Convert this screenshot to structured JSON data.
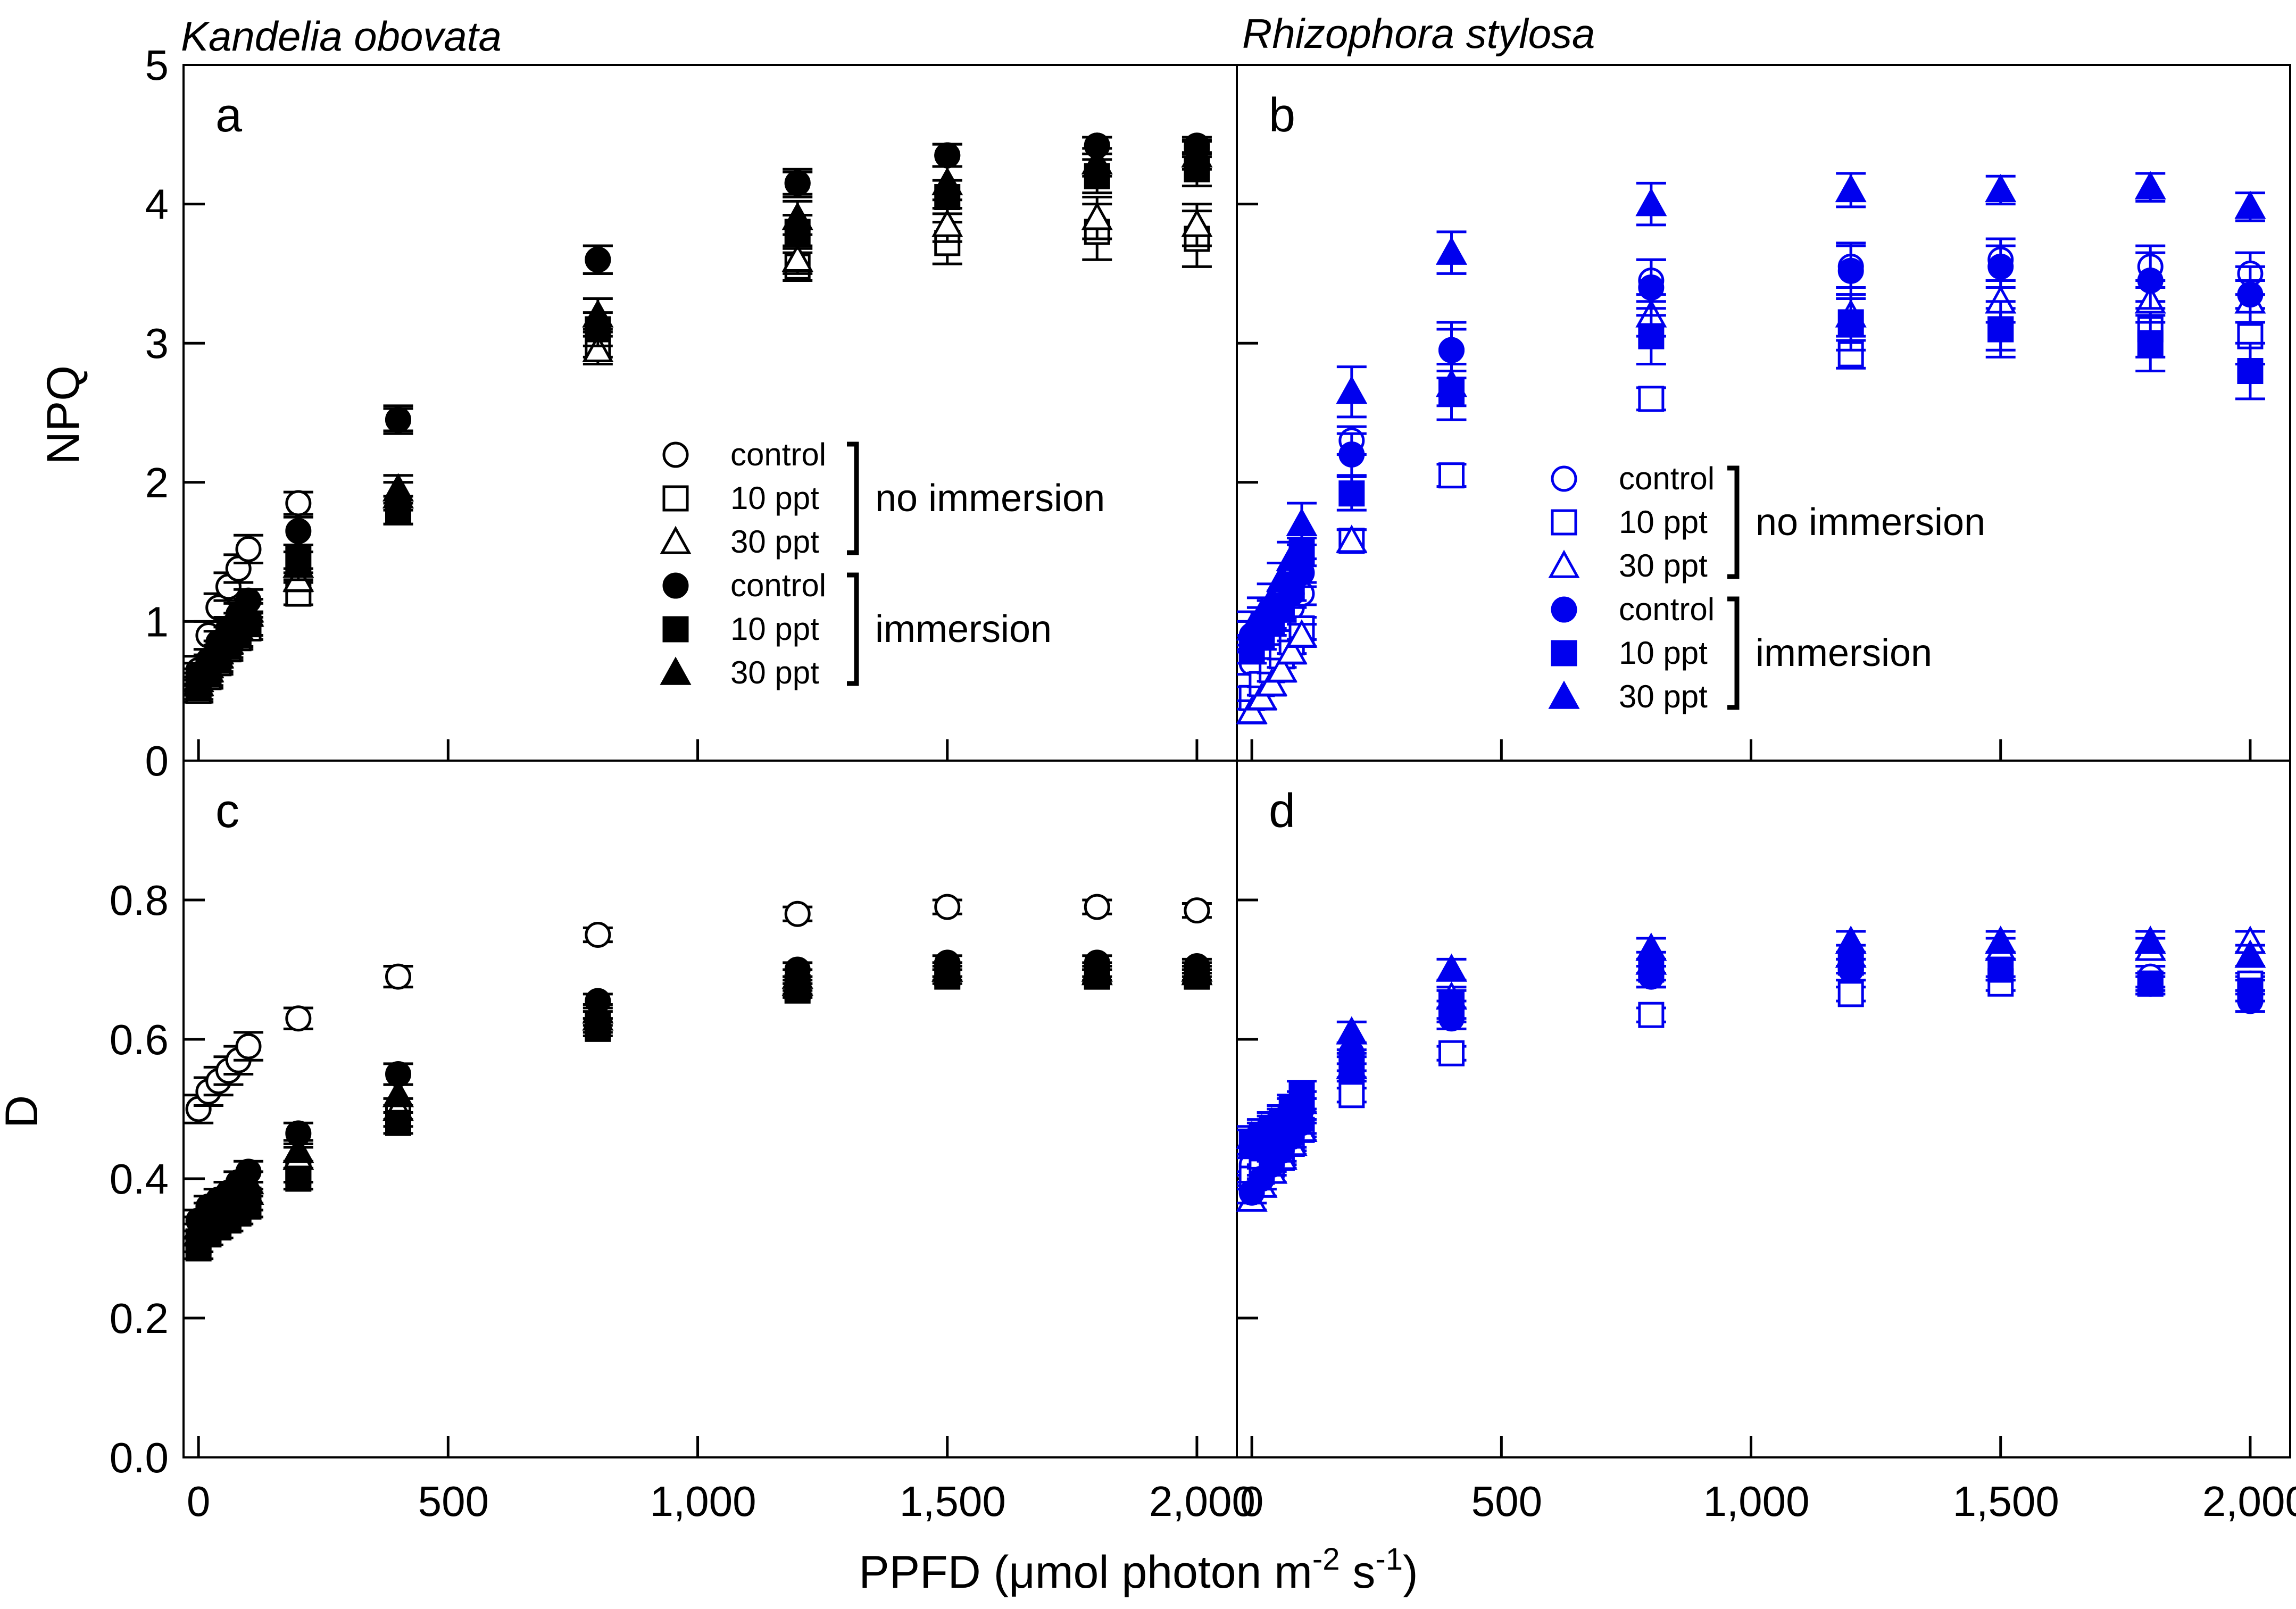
{
  "chart_data": {
    "type": "scatter",
    "x_axis": {
      "label": "PPFD (μmol photon m-2 s-1)",
      "label_prefix": "PPFD (",
      "label_mu": "μ",
      "label_mid": "mol photon m",
      "label_sup1": "-2",
      "label_s": " s",
      "label_sup2": "-1",
      "label_suffix": ")",
      "xlim": [
        -30,
        2080
      ],
      "ticks": [
        0,
        500,
        1000,
        1500,
        2000
      ],
      "tick_labels": [
        "0",
        "500",
        "1,000",
        "1,500",
        "2,000"
      ]
    },
    "top_y_axis": {
      "label": "NPQ",
      "ylim": [
        0,
        5
      ],
      "ticks": [
        0,
        1,
        2,
        3,
        4,
        5
      ],
      "tick_labels": [
        "0",
        "1",
        "2",
        "3",
        "4",
        "5"
      ]
    },
    "bottom_y_axis": {
      "label": "D",
      "ylim": [
        0.0,
        1.0
      ],
      "ticks": [
        0.0,
        0.2,
        0.4,
        0.6,
        0.8
      ],
      "tick_labels": [
        "0.0",
        "0.2",
        "0.4",
        "0.6",
        "0.8"
      ]
    },
    "species": [
      {
        "name": "Kandelia obovata",
        "color": "#000000"
      },
      {
        "name": "Rhizophora stylosa",
        "color": "#0000ee"
      }
    ],
    "legend": {
      "group_labels": [
        "no immersion",
        "immersion"
      ],
      "entries": [
        {
          "label": "control",
          "marker": "circle",
          "filled": false,
          "group": 0
        },
        {
          "label": "10 ppt",
          "marker": "square",
          "filled": false,
          "group": 0
        },
        {
          "label": "30 ppt",
          "marker": "triangle",
          "filled": false,
          "group": 0
        },
        {
          "label": "control",
          "marker": "circle",
          "filled": true,
          "group": 1
        },
        {
          "label": "10 ppt",
          "marker": "square",
          "filled": true,
          "group": 1
        },
        {
          "label": "30 ppt",
          "marker": "triangle",
          "filled": true,
          "group": 1
        }
      ]
    },
    "x": [
      0,
      20,
      40,
      60,
      80,
      100,
      200,
      400,
      800,
      1200,
      1500,
      1800,
      2000
    ],
    "panels": [
      {
        "id": "a",
        "species": 0,
        "metric": "NPQ",
        "series": [
          {
            "name": "control - no immersion",
            "values": [
              0.65,
              0.9,
              1.1,
              1.25,
              1.38,
              1.52,
              1.85,
              2.45,
              3.6,
              4.15,
              4.35,
              4.42,
              4.4
            ],
            "err": [
              0.1,
              0.1,
              0.1,
              0.1,
              0.1,
              0.1,
              0.08,
              0.08,
              0.1,
              0.1,
              0.08,
              0.06,
              0.06
            ]
          },
          {
            "name": "10 ppt - no immersion",
            "values": [
              0.5,
              0.6,
              0.7,
              0.8,
              0.88,
              0.95,
              1.2,
              1.8,
              3.0,
              3.55,
              3.72,
              3.8,
              3.75
            ],
            "err": [
              0.08,
              0.08,
              0.08,
              0.08,
              0.08,
              0.08,
              0.08,
              0.1,
              0.1,
              0.1,
              0.15,
              0.2,
              0.2
            ]
          },
          {
            "name": "30 ppt - no immersion",
            "values": [
              0.55,
              0.65,
              0.75,
              0.85,
              0.95,
              1.05,
              1.3,
              1.9,
              2.95,
              3.6,
              3.85,
              3.9,
              3.85
            ],
            "err": [
              0.08,
              0.08,
              0.08,
              0.08,
              0.08,
              0.08,
              0.08,
              0.1,
              0.1,
              0.1,
              0.12,
              0.15,
              0.15
            ]
          },
          {
            "name": "control - immersion",
            "values": [
              0.62,
              0.72,
              0.85,
              0.95,
              1.05,
              1.15,
              1.65,
              2.45,
              3.6,
              4.15,
              4.35,
              4.42,
              4.42
            ],
            "err": [
              0.08,
              0.08,
              0.08,
              0.08,
              0.08,
              0.08,
              0.1,
              0.1,
              0.1,
              0.08,
              0.08,
              0.06,
              0.06
            ]
          },
          {
            "name": "10 ppt - immersion",
            "values": [
              0.52,
              0.62,
              0.72,
              0.82,
              0.9,
              0.98,
              1.45,
              1.8,
              3.1,
              3.8,
              4.05,
              4.2,
              4.25
            ],
            "err": [
              0.08,
              0.08,
              0.08,
              0.08,
              0.08,
              0.08,
              0.1,
              0.1,
              0.12,
              0.12,
              0.12,
              0.12,
              0.12
            ]
          },
          {
            "name": "30 ppt - immersion",
            "values": [
              0.58,
              0.68,
              0.78,
              0.88,
              0.98,
              1.08,
              1.4,
              1.95,
              3.2,
              3.9,
              4.15,
              4.3,
              4.35
            ],
            "err": [
              0.08,
              0.08,
              0.08,
              0.08,
              0.08,
              0.08,
              0.1,
              0.1,
              0.12,
              0.12,
              0.12,
              0.1,
              0.1
            ]
          }
        ]
      },
      {
        "id": "b",
        "species": 1,
        "metric": "NPQ",
        "series": [
          {
            "name": "control - no immersion",
            "values": [
              0.7,
              0.8,
              0.9,
              1.0,
              1.1,
              1.2,
              2.3,
              2.95,
              3.45,
              3.55,
              3.6,
              3.55,
              3.5
            ],
            "err": [
              0.08,
              0.08,
              0.08,
              0.08,
              0.08,
              0.08,
              0.1,
              0.15,
              0.15,
              0.15,
              0.15,
              0.15,
              0.15
            ]
          },
          {
            "name": "10 ppt - no immersion",
            "values": [
              0.45,
              0.55,
              0.65,
              0.75,
              0.85,
              0.95,
              1.58,
              2.05,
              2.6,
              2.92,
              3.1,
              3.1,
              3.05
            ],
            "err": [
              0.08,
              0.08,
              0.08,
              0.08,
              0.08,
              0.08,
              0.08,
              0.08,
              0.08,
              0.1,
              0.15,
              0.2,
              0.2
            ]
          },
          {
            "name": "30 ppt - no immersion",
            "values": [
              0.35,
              0.45,
              0.55,
              0.65,
              0.78,
              0.9,
              1.58,
              2.7,
              3.2,
              3.2,
              3.3,
              3.3,
              3.3
            ],
            "err": [
              0.08,
              0.08,
              0.08,
              0.08,
              0.08,
              0.08,
              0.08,
              0.15,
              0.15,
              0.15,
              0.15,
              0.15,
              0.15
            ]
          },
          {
            "name": "control - immersion",
            "values": [
              0.9,
              1.0,
              1.05,
              1.12,
              1.2,
              1.35,
              2.2,
              2.95,
              3.4,
              3.52,
              3.55,
              3.45,
              3.35
            ],
            "err": [
              0.1,
              0.1,
              0.1,
              0.1,
              0.1,
              0.1,
              0.15,
              0.2,
              0.2,
              0.2,
              0.15,
              0.2,
              0.2
            ]
          },
          {
            "name": "10 ppt - immersion",
            "values": [
              0.8,
              0.9,
              1.0,
              1.1,
              1.25,
              1.5,
              1.92,
              2.65,
              3.05,
              3.15,
              3.1,
              3.0,
              2.8
            ],
            "err": [
              0.1,
              0.1,
              0.1,
              0.1,
              0.1,
              0.1,
              0.12,
              0.2,
              0.2,
              0.2,
              0.2,
              0.2,
              0.2
            ]
          },
          {
            "name": "30 ppt - immersion",
            "values": [
              0.95,
              1.05,
              1.15,
              1.3,
              1.45,
              1.7,
              2.65,
              3.65,
              4.0,
              4.1,
              4.1,
              4.12,
              3.98
            ],
            "err": [
              0.12,
              0.12,
              0.12,
              0.12,
              0.12,
              0.15,
              0.18,
              0.15,
              0.15,
              0.12,
              0.1,
              0.1,
              0.1
            ]
          }
        ]
      },
      {
        "id": "c",
        "species": 0,
        "metric": "D",
        "series": [
          {
            "name": "control - no immersion",
            "values": [
              0.5,
              0.525,
              0.54,
              0.555,
              0.57,
              0.59,
              0.63,
              0.69,
              0.75,
              0.78,
              0.79,
              0.79,
              0.785
            ],
            "err": [
              0.02,
              0.02,
              0.02,
              0.02,
              0.02,
              0.02,
              0.015,
              0.015,
              0.01,
              0.01,
              0.01,
              0.01,
              0.01
            ]
          },
          {
            "name": "10 ppt - no immersion",
            "values": [
              0.31,
              0.33,
              0.34,
              0.35,
              0.36,
              0.37,
              0.41,
              0.49,
              0.62,
              0.675,
              0.695,
              0.69,
              0.69
            ],
            "err": [
              0.015,
              0.015,
              0.015,
              0.015,
              0.015,
              0.015,
              0.015,
              0.015,
              0.01,
              0.01,
              0.01,
              0.01,
              0.01
            ]
          },
          {
            "name": "30 ppt - no immersion",
            "values": [
              0.32,
              0.34,
              0.35,
              0.36,
              0.37,
              0.38,
              0.43,
              0.5,
              0.63,
              0.68,
              0.7,
              0.695,
              0.695
            ],
            "err": [
              0.015,
              0.015,
              0.015,
              0.015,
              0.015,
              0.015,
              0.015,
              0.015,
              0.01,
              0.01,
              0.01,
              0.01,
              0.01
            ]
          },
          {
            "name": "control - immersion",
            "values": [
              0.34,
              0.36,
              0.37,
              0.38,
              0.395,
              0.41,
              0.465,
              0.55,
              0.655,
              0.7,
              0.71,
              0.71,
              0.705
            ],
            "err": [
              0.015,
              0.015,
              0.015,
              0.015,
              0.015,
              0.015,
              0.015,
              0.015,
              0.01,
              0.01,
              0.01,
              0.01,
              0.01
            ]
          },
          {
            "name": "10 ppt - immersion",
            "values": [
              0.3,
              0.32,
              0.33,
              0.34,
              0.35,
              0.36,
              0.4,
              0.48,
              0.615,
              0.67,
              0.69,
              0.69,
              0.69
            ],
            "err": [
              0.015,
              0.015,
              0.015,
              0.015,
              0.015,
              0.015,
              0.015,
              0.015,
              0.01,
              0.01,
              0.01,
              0.01,
              0.01
            ]
          },
          {
            "name": "30 ppt - immersion",
            "values": [
              0.33,
              0.35,
              0.36,
              0.37,
              0.38,
              0.395,
              0.44,
              0.52,
              0.64,
              0.69,
              0.7,
              0.7,
              0.7
            ],
            "err": [
              0.015,
              0.015,
              0.015,
              0.015,
              0.015,
              0.015,
              0.015,
              0.015,
              0.01,
              0.01,
              0.01,
              0.01,
              0.01
            ]
          }
        ]
      },
      {
        "id": "d",
        "species": 1,
        "metric": "D",
        "series": [
          {
            "name": "control - no immersion",
            "values": [
              0.42,
              0.43,
              0.44,
              0.45,
              0.47,
              0.5,
              0.57,
              0.64,
              0.69,
              0.7,
              0.7,
              0.69,
              0.68
            ],
            "err": [
              0.015,
              0.015,
              0.015,
              0.015,
              0.015,
              0.015,
              0.015,
              0.015,
              0.015,
              0.015,
              0.015,
              0.015,
              0.015
            ]
          },
          {
            "name": "10 ppt - no immersion",
            "values": [
              0.4,
              0.41,
              0.42,
              0.43,
              0.45,
              0.47,
              0.52,
              0.58,
              0.635,
              0.665,
              0.68,
              0.68,
              0.68
            ],
            "err": [
              0.01,
              0.01,
              0.01,
              0.01,
              0.01,
              0.01,
              0.01,
              0.01,
              0.01,
              0.01,
              0.01,
              0.01,
              0.01
            ]
          },
          {
            "name": "30 ppt - no immersion",
            "values": [
              0.37,
              0.39,
              0.41,
              0.43,
              0.45,
              0.47,
              0.56,
              0.66,
              0.71,
              0.72,
              0.73,
              0.73,
              0.74
            ],
            "err": [
              0.015,
              0.015,
              0.015,
              0.015,
              0.015,
              0.015,
              0.015,
              0.015,
              0.015,
              0.015,
              0.015,
              0.015,
              0.015
            ]
          },
          {
            "name": "control - immersion",
            "values": [
              0.38,
              0.4,
              0.42,
              0.44,
              0.46,
              0.48,
              0.58,
              0.63,
              0.69,
              0.7,
              0.7,
              0.68,
              0.655
            ],
            "err": [
              0.015,
              0.015,
              0.015,
              0.015,
              0.015,
              0.015,
              0.015,
              0.015,
              0.015,
              0.015,
              0.015,
              0.015,
              0.015
            ]
          },
          {
            "name": "10 ppt - immersion",
            "values": [
              0.45,
              0.46,
              0.47,
              0.48,
              0.5,
              0.52,
              0.56,
              0.65,
              0.7,
              0.71,
              0.7,
              0.68,
              0.67
            ],
            "err": [
              0.02,
              0.02,
              0.02,
              0.02,
              0.02,
              0.02,
              0.02,
              0.02,
              0.015,
              0.015,
              0.015,
              0.015,
              0.015
            ]
          },
          {
            "name": "30 ppt - immersion",
            "values": [
              0.46,
              0.47,
              0.48,
              0.49,
              0.5,
              0.51,
              0.61,
              0.7,
              0.73,
              0.74,
              0.74,
              0.74,
              0.72
            ],
            "err": [
              0.015,
              0.015,
              0.015,
              0.015,
              0.015,
              0.015,
              0.015,
              0.015,
              0.015,
              0.015,
              0.015,
              0.015,
              0.015
            ]
          }
        ]
      }
    ]
  }
}
